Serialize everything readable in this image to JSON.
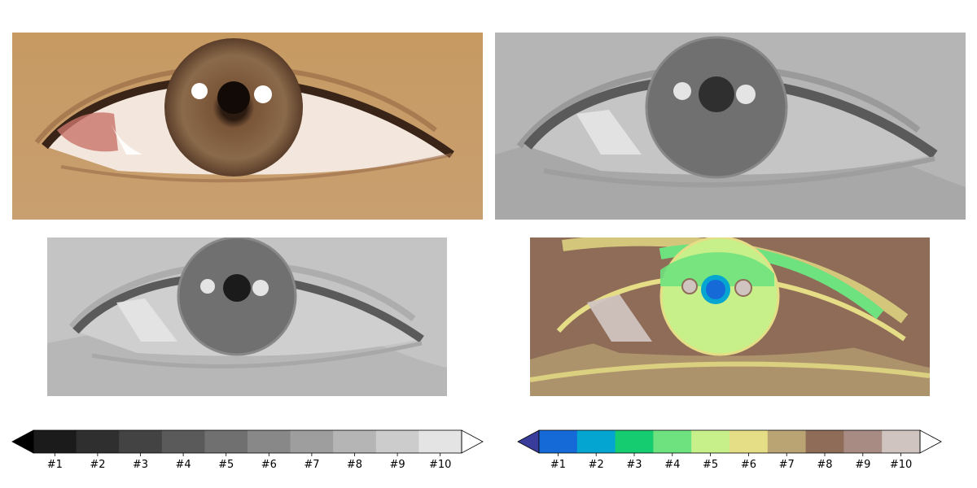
{
  "panels": [
    {
      "name": "original-eye-photo",
      "kind": "color"
    },
    {
      "name": "gray-quantized-eye-large",
      "kind": "gray"
    },
    {
      "name": "gray-quantized-eye-small",
      "kind": "gray-light"
    },
    {
      "name": "colormap-quantized-eye",
      "kind": "terrain"
    }
  ],
  "colorbar_left": {
    "labels": [
      "#1",
      "#2",
      "#3",
      "#4",
      "#5",
      "#6",
      "#7",
      "#8",
      "#9",
      "#10"
    ],
    "under_color": "#000000",
    "over_color": "#ffffff",
    "colors": [
      "#1b1b1b",
      "#2f2f2f",
      "#434343",
      "#5a5a5a",
      "#707070",
      "#888888",
      "#9e9e9e",
      "#b5b5b5",
      "#cccccc",
      "#e4e4e4"
    ]
  },
  "colorbar_right": {
    "labels": [
      "#1",
      "#2",
      "#3",
      "#4",
      "#5",
      "#6",
      "#7",
      "#8",
      "#9",
      "#10"
    ],
    "under_color": "#3a3c9c",
    "over_color": "#ffffff",
    "colors": [
      "#166ad8",
      "#04a5d0",
      "#16cc70",
      "#6ee27e",
      "#c8f08a",
      "#e6de86",
      "#baa473",
      "#8e6c58",
      "#a88c84",
      "#d0c4c0"
    ]
  }
}
